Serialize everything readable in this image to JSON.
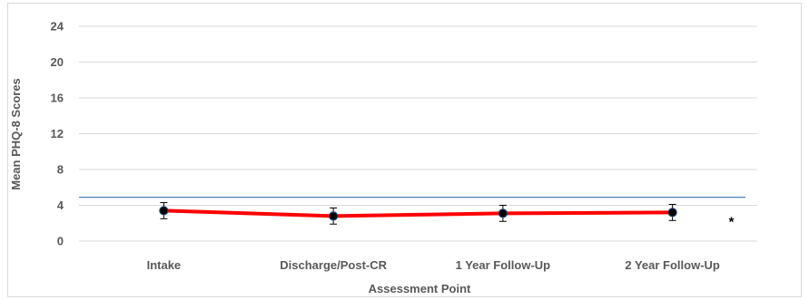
{
  "chart_data": {
    "type": "line",
    "xlabel": "Assessment Point",
    "ylabel": "Mean PHQ-8 Scores",
    "ylim": [
      0,
      24
    ],
    "yticks": [
      "0",
      "4",
      "8",
      "12",
      "16",
      "20",
      "24"
    ],
    "grid": true,
    "categories": [
      "Intake",
      "Discharge/Post-CR",
      "1 Year Follow-Up",
      "2 Year Follow-Up"
    ],
    "series": [
      {
        "values": [
          3.4,
          2.8,
          3.1,
          3.2
        ],
        "error": [
          0.9,
          0.9,
          0.9,
          0.9
        ],
        "color": "#ff0000",
        "marker_color": "#000000"
      }
    ],
    "reference_line": {
      "value": 4.9,
      "color": "#4f81bd"
    },
    "annotations": [
      {
        "text": "*",
        "category_index": 3,
        "y": 2.5
      }
    ]
  }
}
